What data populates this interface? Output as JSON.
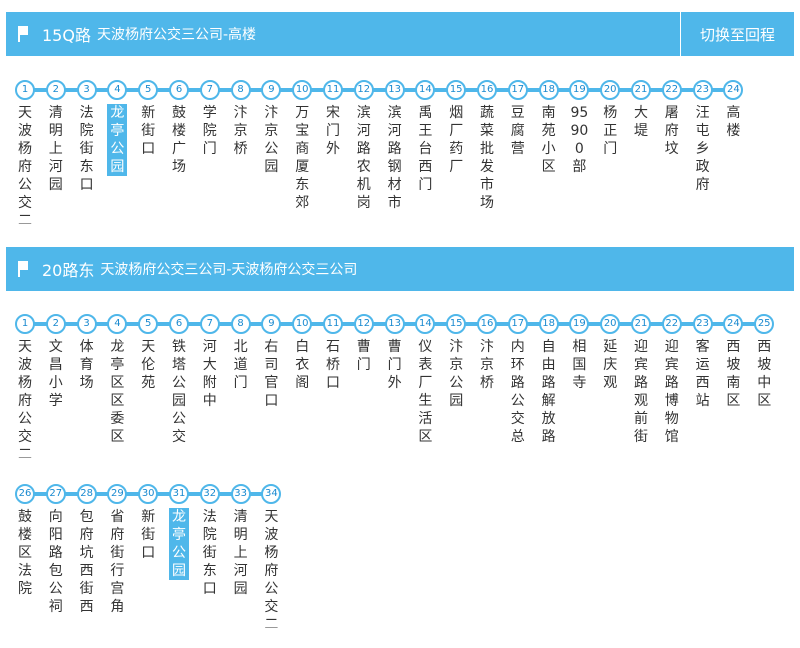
{
  "routes": [
    {
      "name": "15Q路",
      "desc": "天波杨府公交三公司-高楼",
      "switch_label": "切换至回程",
      "stops": [
        {
          "num": "1",
          "name": "天波杨府公交二"
        },
        {
          "num": "2",
          "name": "清明上河园"
        },
        {
          "num": "3",
          "name": "法院街东口"
        },
        {
          "num": "4",
          "name": "龙亭公园",
          "current": true
        },
        {
          "num": "5",
          "name": "新街口"
        },
        {
          "num": "6",
          "name": "鼓楼广场"
        },
        {
          "num": "7",
          "name": "学院门"
        },
        {
          "num": "8",
          "name": "汴京桥"
        },
        {
          "num": "9",
          "name": "汴京公园"
        },
        {
          "num": "10",
          "name": "万宝商厦东郊"
        },
        {
          "num": "11",
          "name": "宋门外"
        },
        {
          "num": "12",
          "name": "滨河路农机岗"
        },
        {
          "num": "13",
          "name": "滨河路钢材市"
        },
        {
          "num": "14",
          "name": "禹王台西门"
        },
        {
          "num": "15",
          "name": "烟厂药厂"
        },
        {
          "num": "16",
          "name": "蔬菜批发市场"
        },
        {
          "num": "17",
          "name": "豆腐营"
        },
        {
          "num": "18",
          "name": "南苑小区"
        },
        {
          "num": "19",
          "name": "95900部"
        },
        {
          "num": "20",
          "name": "杨正门"
        },
        {
          "num": "21",
          "name": "大堤"
        },
        {
          "num": "22",
          "name": "屠府坟"
        },
        {
          "num": "23",
          "name": "汪屯乡政府"
        },
        {
          "num": "24",
          "name": "高楼"
        }
      ]
    },
    {
      "name": "20路东",
      "desc": "天波杨府公交三公司-天波杨府公交三公司",
      "stops": [
        {
          "num": "1",
          "name": "天波杨府公交二"
        },
        {
          "num": "2",
          "name": "文昌小学"
        },
        {
          "num": "3",
          "name": "体育场"
        },
        {
          "num": "4",
          "name": "龙亭区区委区"
        },
        {
          "num": "5",
          "name": "天伦苑"
        },
        {
          "num": "6",
          "name": "铁塔公园公交"
        },
        {
          "num": "7",
          "name": "河大附中"
        },
        {
          "num": "8",
          "name": "北道门"
        },
        {
          "num": "9",
          "name": "右司官口"
        },
        {
          "num": "10",
          "name": "白衣阁"
        },
        {
          "num": "11",
          "name": "石桥口"
        },
        {
          "num": "12",
          "name": "曹门"
        },
        {
          "num": "13",
          "name": "曹门外"
        },
        {
          "num": "14",
          "name": "仪表厂生活区"
        },
        {
          "num": "15",
          "name": "汴京公园"
        },
        {
          "num": "16",
          "name": "汴京桥"
        },
        {
          "num": "17",
          "name": "内环路公交总"
        },
        {
          "num": "18",
          "name": "自由路解放路"
        },
        {
          "num": "19",
          "name": "相国寺"
        },
        {
          "num": "20",
          "name": "延庆观"
        },
        {
          "num": "21",
          "name": "迎宾路观前街"
        },
        {
          "num": "22",
          "name": "迎宾路博物馆"
        },
        {
          "num": "23",
          "name": "客运西站"
        },
        {
          "num": "24",
          "name": "西坡南区"
        },
        {
          "num": "25",
          "name": "西坡中区"
        },
        {
          "num": "26",
          "name": "鼓楼区法院"
        },
        {
          "num": "27",
          "name": "向阳路包公祠"
        },
        {
          "num": "28",
          "name": "包府坑西街西"
        },
        {
          "num": "29",
          "name": "省府街行宫角"
        },
        {
          "num": "30",
          "name": "新街口"
        },
        {
          "num": "31",
          "name": "龙亭公园",
          "current": true
        },
        {
          "num": "32",
          "name": "法院街东口"
        },
        {
          "num": "33",
          "name": "清明上河园"
        },
        {
          "num": "34",
          "name": "天波杨府公交二"
        }
      ]
    }
  ],
  "colors": {
    "accent": "#4fb7ea",
    "stop_text": "#1a8ad0"
  }
}
